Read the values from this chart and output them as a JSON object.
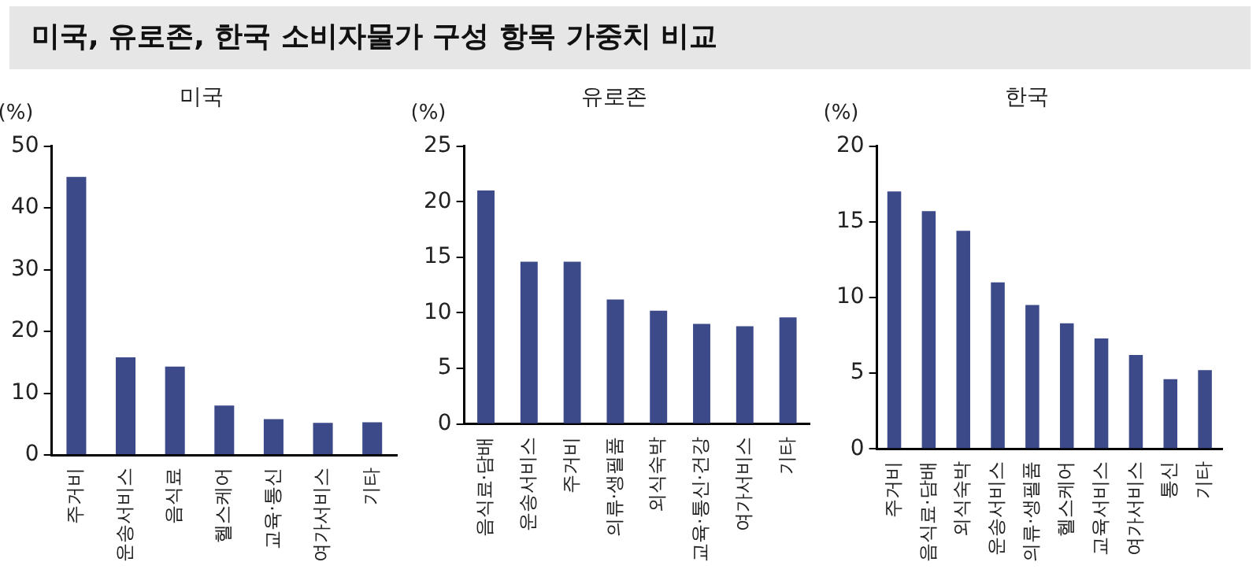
{
  "chart_data": [
    {
      "type": "bar",
      "title": "미국, 유로존, 한국 소비자물가 구성 항목 가중치 비교",
      "subtitle": "미국",
      "ylabel": "(%)",
      "categories": [
        "주거비",
        "운송서비스",
        "음식료",
        "헬스케어",
        "교육·통신",
        "여가서비스",
        "기타"
      ],
      "values": [
        45,
        15.8,
        14.3,
        8,
        5.8,
        5.2,
        5.3
      ],
      "color": "#3d4a8a",
      "ylim": [
        0,
        50
      ],
      "yticks": [
        0,
        10,
        20,
        30,
        40,
        50
      ],
      "grid": false,
      "legend": false
    },
    {
      "type": "bar",
      "subtitle": "유로존",
      "ylabel": "(%)",
      "categories": [
        "음식료·담배",
        "운송서비스",
        "주거비",
        "의류·생필품",
        "외식숙박",
        "교육·통신·건강",
        "여가서비스",
        "기타"
      ],
      "values": [
        21,
        14.6,
        14.6,
        11.2,
        10.2,
        9,
        8.8,
        9.6
      ],
      "color": "#3d4a8a",
      "ylim": [
        0,
        25
      ],
      "yticks": [
        0,
        5,
        10,
        15,
        20,
        25
      ],
      "grid": false,
      "legend": false
    },
    {
      "type": "bar",
      "subtitle": "한국",
      "ylabel": "(%)",
      "categories": [
        "주거비",
        "음식료·담배",
        "외식숙박",
        "운송서비스",
        "의류·생필품",
        "헬스케어",
        "교육서비스",
        "여가서비스",
        "통신",
        "기타"
      ],
      "values": [
        17,
        15.7,
        14.4,
        11,
        9.5,
        8.3,
        7.3,
        6.2,
        4.6,
        5.2
      ],
      "color": "#3d4a8a",
      "ylim": [
        0,
        20
      ],
      "yticks": [
        0,
        5,
        10,
        15,
        20
      ],
      "grid": false,
      "legend": false
    }
  ]
}
